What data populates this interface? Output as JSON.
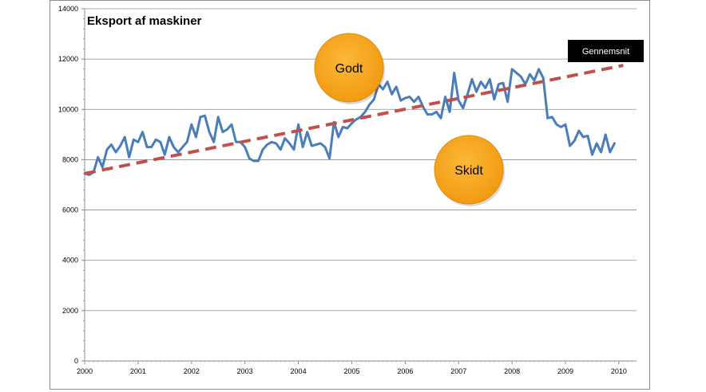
{
  "chart_data": {
    "type": "line",
    "title": "Eksport af maskiner",
    "xlabel": "",
    "ylabel": "",
    "ylim": [
      0,
      14000
    ],
    "yticks": [
      "0",
      "2000",
      "4000",
      "6000",
      "8000",
      "10000",
      "12000",
      "14000"
    ],
    "xticks": [
      "2000",
      "2001",
      "2002",
      "2003",
      "2004",
      "2005",
      "2006",
      "2007",
      "2008",
      "2009",
      "2010"
    ],
    "grid": true,
    "series": [
      {
        "color": "#4a7ebb",
        "start_year": 2000,
        "values": [
          7450,
          7400,
          7500,
          8100,
          7700,
          8400,
          8600,
          8300,
          8550,
          8900,
          8100,
          8800,
          8700,
          9100,
          8500,
          8500,
          8800,
          8700,
          8200,
          8900,
          8500,
          8300,
          8500,
          8700,
          9400,
          8900,
          9700,
          9750,
          9100,
          8700,
          9700,
          9100,
          9200,
          9400,
          8700,
          8700,
          8500,
          8050,
          7950,
          7950,
          8400,
          8600,
          8700,
          8650,
          8400,
          8850,
          8650,
          8400,
          9400,
          8500,
          9100,
          8550,
          8600,
          8650,
          8500,
          8050,
          9500,
          8900,
          9300,
          9250,
          9450,
          9600,
          9700,
          9900,
          10200,
          10400,
          11000,
          10800,
          11100,
          10600,
          10900,
          10350,
          10450,
          10500,
          10300,
          10500,
          10100,
          9800,
          9800,
          9900,
          9650,
          10500,
          9900,
          11450,
          10350,
          10050,
          10600,
          11200,
          10700,
          11100,
          10850,
          11200,
          10400,
          11000,
          11050,
          10300,
          11600,
          11450,
          11300,
          11000,
          11400,
          11150,
          11600,
          11250,
          9650,
          9700,
          9400,
          9300,
          9400,
          8550,
          8750,
          9150,
          8900,
          8950,
          8200,
          8650,
          8300,
          9000,
          8300,
          8650
        ]
      },
      {
        "name": "Gennemsnit",
        "color": "#c0504d",
        "dashed": true,
        "start": [
          2000,
          7450
        ],
        "end": [
          2010.083,
          11750
        ]
      }
    ],
    "annotations": [
      {
        "text": "Godt",
        "color": "#f5a623"
      },
      {
        "text": "Skidt",
        "color": "#f5a623"
      }
    ],
    "legend_box": {
      "text": "Gennemsnit",
      "background": "#000000",
      "color": "#ffffff"
    }
  }
}
